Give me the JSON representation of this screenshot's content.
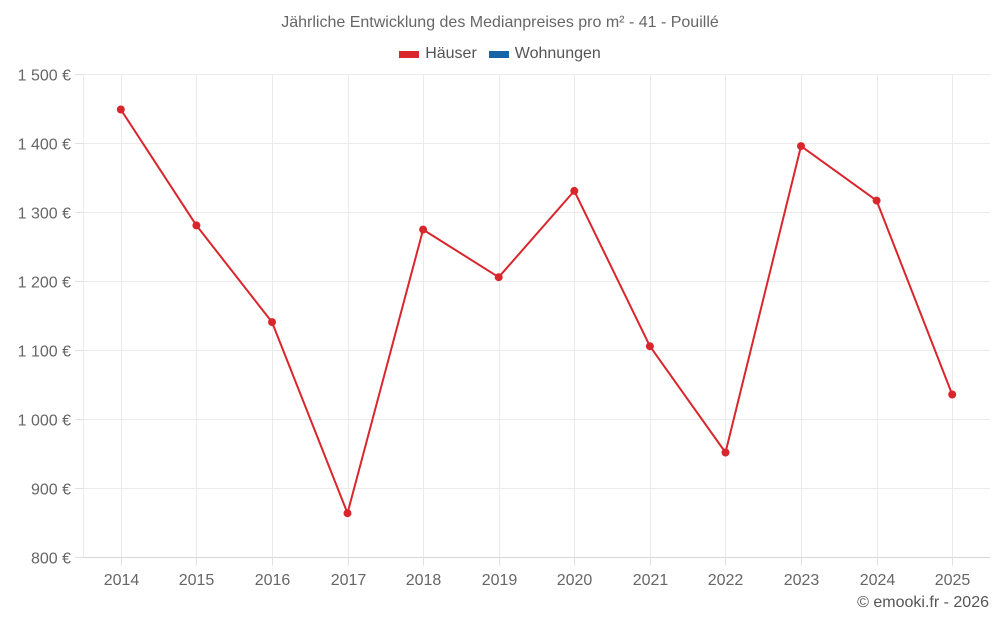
{
  "chart_data": {
    "type": "line",
    "title": "Jährliche Entwicklung des Medianpreises pro m² - 41 - Pouillé",
    "xlabel": "",
    "ylabel": "",
    "categories": [
      "2014",
      "2015",
      "2016",
      "2017",
      "2018",
      "2019",
      "2020",
      "2021",
      "2022",
      "2023",
      "2024",
      "2025"
    ],
    "series": [
      {
        "name": "Häuser",
        "color": "#d9262c",
        "values": [
          1449,
          1281,
          1141,
          864,
          1275,
          1206,
          1331,
          1106,
          952,
          1396,
          1317,
          1036
        ]
      },
      {
        "name": "Wohnungen",
        "color": "#1565a6",
        "values": []
      }
    ],
    "ylim": [
      800,
      1500
    ],
    "yticks": [
      800,
      900,
      1000,
      1100,
      1200,
      1300,
      1400,
      1500
    ],
    "ytick_labels": [
      "800 €",
      "900 €",
      "1 000 €",
      "1 100 €",
      "1 200 €",
      "1 300 €",
      "1 400 €",
      "1 500 €"
    ],
    "grid": true,
    "legend_position": "top-center"
  },
  "header": {
    "title": "Jährliche Entwicklung des Medianpreises pro m² - 41 - Pouillé"
  },
  "legend": {
    "items": [
      {
        "label": "Häuser",
        "color": "#d9262c"
      },
      {
        "label": "Wohnungen",
        "color": "#1565a6"
      }
    ]
  },
  "footer": {
    "credit": "© emooki.fr - 2026"
  }
}
